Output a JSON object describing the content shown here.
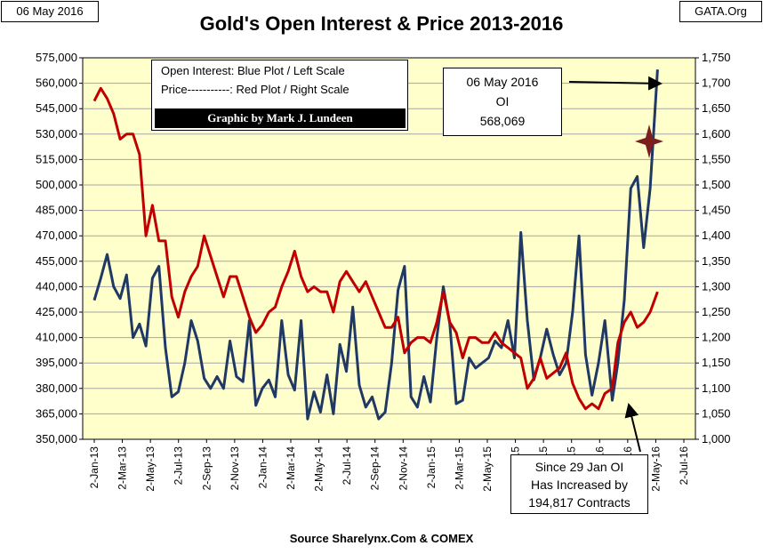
{
  "header": {
    "date_label": "06 May 2016",
    "site_label": "GATA.Org",
    "title": "Gold's Open Interest & Price 2013-2016"
  },
  "legend": {
    "line1": "Open Interest:  Blue Plot / Left Scale",
    "line2": "Price-----------: Red Plot / Right Scale",
    "credit": "Graphic by Mark J. Lundeen"
  },
  "annotations": {
    "oi_box": {
      "line1": "06 May 2016",
      "line2": "OI",
      "line3": "568,069"
    },
    "since_box": {
      "line1": "Since 29 Jan OI",
      "line2": "Has Increased by",
      "line3": "194,817 Contracts"
    }
  },
  "footer": {
    "source": "Source Sharelynx.Com & COMEX"
  },
  "colors": {
    "plot_bg": "#ffffcc",
    "oi_line": "#1f3864",
    "price_line": "#c00000",
    "grid": "#a6a6a6",
    "star": "#7a1e1e"
  },
  "chart_data": {
    "type": "line",
    "title": "Gold's Open Interest & Price 2013-2016",
    "x_tick_labels": [
      "2-Jan-13",
      "2-Mar-13",
      "2-May-13",
      "2-Jul-13",
      "2-Sep-13",
      "2-Nov-13",
      "2-Jan-14",
      "2-Mar-14",
      "2-May-14",
      "2-Jul-14",
      "2-Sep-14",
      "2-Nov-14",
      "2-Jan-15",
      "2-Mar-15",
      "2-May-15",
      "2-Jul-15",
      "2-Sep-15",
      "2-Nov-15",
      "2-Jan-16",
      "2-Mar-16",
      "2-May-16",
      "2-Jul-16"
    ],
    "y_left_ticks": [
      "350,000",
      "365,000",
      "380,000",
      "395,000",
      "410,000",
      "425,000",
      "440,000",
      "455,000",
      "470,000",
      "485,000",
      "500,000",
      "515,000",
      "530,000",
      "545,000",
      "560,000",
      "575,000"
    ],
    "y_right_ticks": [
      "1,000",
      "1,050",
      "1,100",
      "1,150",
      "1,200",
      "1,250",
      "1,300",
      "1,350",
      "1,400",
      "1,450",
      "1,500",
      "1,550",
      "1,600",
      "1,650",
      "1,700",
      "1,750"
    ],
    "ylim_left": [
      350000,
      575000
    ],
    "ylim_right": [
      1000,
      1750
    ],
    "grid": true,
    "series": [
      {
        "name": "Open Interest",
        "axis": "left",
        "x": [
          "2013-01-02",
          "2013-01-16",
          "2013-01-30",
          "2013-02-13",
          "2013-02-27",
          "2013-03-13",
          "2013-03-27",
          "2013-04-10",
          "2013-04-24",
          "2013-05-08",
          "2013-05-22",
          "2013-06-05",
          "2013-06-19",
          "2013-07-03",
          "2013-07-17",
          "2013-07-31",
          "2013-08-14",
          "2013-08-28",
          "2013-09-11",
          "2013-09-25",
          "2013-10-09",
          "2013-10-23",
          "2013-11-06",
          "2013-11-20",
          "2013-12-04",
          "2013-12-18",
          "2014-01-01",
          "2014-01-15",
          "2014-01-29",
          "2014-02-12",
          "2014-02-26",
          "2014-03-12",
          "2014-03-26",
          "2014-04-09",
          "2014-04-23",
          "2014-05-07",
          "2014-05-21",
          "2014-06-04",
          "2014-06-18",
          "2014-07-02",
          "2014-07-16",
          "2014-07-30",
          "2014-08-13",
          "2014-08-27",
          "2014-09-10",
          "2014-09-24",
          "2014-10-08",
          "2014-10-22",
          "2014-11-05",
          "2014-11-19",
          "2014-12-03",
          "2014-12-17",
          "2014-12-31",
          "2015-01-14",
          "2015-01-28",
          "2015-02-11",
          "2015-02-25",
          "2015-03-11",
          "2015-03-25",
          "2015-04-08",
          "2015-04-22",
          "2015-05-06",
          "2015-05-20",
          "2015-06-03",
          "2015-06-17",
          "2015-07-01",
          "2015-07-15",
          "2015-07-29",
          "2015-08-12",
          "2015-08-26",
          "2015-09-09",
          "2015-09-23",
          "2015-10-07",
          "2015-10-21",
          "2015-11-04",
          "2015-11-18",
          "2015-12-02",
          "2015-12-16",
          "2015-12-30",
          "2016-01-13",
          "2016-01-29",
          "2016-02-10",
          "2016-02-24",
          "2016-03-09",
          "2016-03-23",
          "2016-04-06",
          "2016-04-20",
          "2016-05-06"
        ],
        "values": [
          432000,
          445000,
          459000,
          440000,
          433000,
          447000,
          410000,
          418000,
          405000,
          445000,
          452000,
          404000,
          375000,
          378000,
          395000,
          420000,
          408000,
          386000,
          380000,
          387000,
          380000,
          408000,
          387000,
          384000,
          420000,
          370000,
          380000,
          385000,
          375000,
          420000,
          388000,
          379000,
          420000,
          362000,
          378000,
          366000,
          388000,
          365000,
          406000,
          390000,
          428000,
          382000,
          369000,
          375000,
          362000,
          366000,
          395000,
          438000,
          452000,
          375000,
          369000,
          387000,
          372000,
          410000,
          440000,
          418000,
          371000,
          373000,
          398000,
          392000,
          395000,
          398000,
          408000,
          404000,
          420000,
          398000,
          472000,
          420000,
          385000,
          398000,
          415000,
          400000,
          388000,
          395000,
          425000,
          470000,
          400000,
          376000,
          395000,
          420000,
          373000,
          395000,
          432000,
          498000,
          505000,
          463000,
          498000,
          568069
        ]
      },
      {
        "name": "Price",
        "axis": "right",
        "x": [
          "2013-01-02",
          "2013-01-16",
          "2013-01-30",
          "2013-02-13",
          "2013-02-27",
          "2013-03-13",
          "2013-03-27",
          "2013-04-10",
          "2013-04-24",
          "2013-05-08",
          "2013-05-22",
          "2013-06-05",
          "2013-06-19",
          "2013-07-03",
          "2013-07-17",
          "2013-07-31",
          "2013-08-14",
          "2013-08-28",
          "2013-09-11",
          "2013-09-25",
          "2013-10-09",
          "2013-10-23",
          "2013-11-06",
          "2013-11-20",
          "2013-12-04",
          "2013-12-18",
          "2014-01-01",
          "2014-01-15",
          "2014-01-29",
          "2014-02-12",
          "2014-02-26",
          "2014-03-12",
          "2014-03-26",
          "2014-04-09",
          "2014-04-23",
          "2014-05-07",
          "2014-05-21",
          "2014-06-04",
          "2014-06-18",
          "2014-07-02",
          "2014-07-16",
          "2014-07-30",
          "2014-08-13",
          "2014-08-27",
          "2014-09-10",
          "2014-09-24",
          "2014-10-08",
          "2014-10-22",
          "2014-11-05",
          "2014-11-19",
          "2014-12-03",
          "2014-12-17",
          "2014-12-31",
          "2015-01-14",
          "2015-01-28",
          "2015-02-11",
          "2015-02-25",
          "2015-03-11",
          "2015-03-25",
          "2015-04-08",
          "2015-04-22",
          "2015-05-06",
          "2015-05-20",
          "2015-06-03",
          "2015-06-17",
          "2015-07-01",
          "2015-07-15",
          "2015-07-29",
          "2015-08-12",
          "2015-08-26",
          "2015-09-09",
          "2015-09-23",
          "2015-10-07",
          "2015-10-21",
          "2015-11-04",
          "2015-11-18",
          "2015-12-02",
          "2015-12-16",
          "2015-12-30",
          "2016-01-13",
          "2016-01-29",
          "2016-02-10",
          "2016-02-24",
          "2016-03-09",
          "2016-03-23",
          "2016-04-06",
          "2016-04-20",
          "2016-05-06"
        ],
        "values": [
          1665,
          1690,
          1670,
          1640,
          1590,
          1600,
          1600,
          1560,
          1400,
          1460,
          1390,
          1390,
          1280,
          1240,
          1290,
          1320,
          1340,
          1400,
          1360,
          1320,
          1280,
          1320,
          1320,
          1280,
          1240,
          1210,
          1225,
          1250,
          1260,
          1300,
          1330,
          1370,
          1320,
          1290,
          1300,
          1290,
          1290,
          1250,
          1310,
          1330,
          1310,
          1290,
          1310,
          1280,
          1250,
          1220,
          1220,
          1240,
          1170,
          1190,
          1200,
          1200,
          1190,
          1230,
          1290,
          1230,
          1210,
          1160,
          1200,
          1200,
          1190,
          1190,
          1210,
          1190,
          1180,
          1170,
          1160,
          1100,
          1120,
          1160,
          1120,
          1130,
          1140,
          1170,
          1110,
          1080,
          1060,
          1070,
          1060,
          1090,
          1100,
          1190,
          1230,
          1250,
          1220,
          1230,
          1250,
          1290
        ]
      }
    ]
  }
}
